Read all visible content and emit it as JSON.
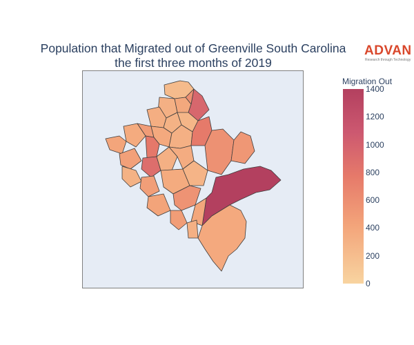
{
  "title": {
    "line1": "Population that Migrated out of Greenville South Carolina",
    "line2": "the first three months of 2019"
  },
  "logo": {
    "name": "ADVAN",
    "tagline": "Research through Technology"
  },
  "colorbar": {
    "title": "Migration Out",
    "min": 0,
    "max": 1400,
    "ticks": [
      "0",
      "200",
      "400",
      "600",
      "800",
      "1000",
      "1200",
      "1400"
    ],
    "colors": [
      "#f8d4a0",
      "#f3a47a",
      "#e67a6a",
      "#cc5870",
      "#b3405f"
    ]
  },
  "map": {
    "region_values": [
      180,
      260,
      320,
      900,
      520,
      280,
      250,
      220,
      300,
      340,
      420,
      310,
      260,
      700,
      720,
      820,
      380,
      260,
      290,
      250,
      510,
      460,
      400,
      300,
      230,
      350,
      1400,
      490,
      330,
      310,
      410,
      260
    ]
  }
}
